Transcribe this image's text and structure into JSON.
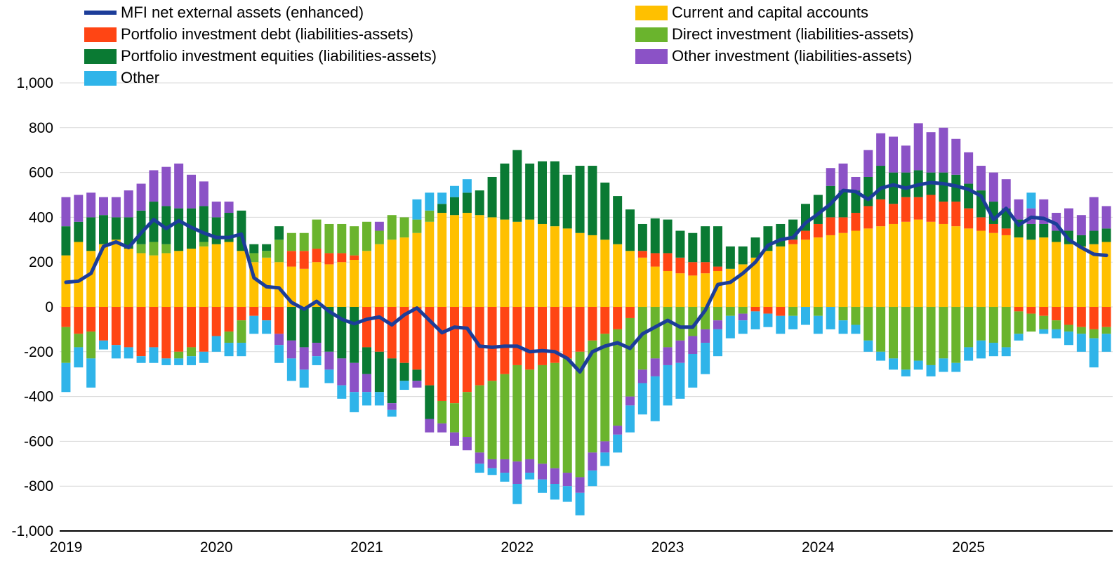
{
  "chart_data": {
    "type": "bar",
    "subtype": "stacked-bar-with-line-overlay",
    "x_unit": "month",
    "x_start": "2019-01",
    "x_end": "2025-12",
    "n_months": 84,
    "x_year_labels": [
      "2019",
      "2020",
      "2021",
      "2022",
      "2023",
      "2024",
      "2025"
    ],
    "ylim": [
      -1000,
      1000
    ],
    "y_tick_values": [
      1000,
      800,
      600,
      400,
      200,
      0,
      -200,
      -400,
      -600,
      -800,
      -1000
    ],
    "y_tick_labels": [
      "1,000",
      "800",
      "600",
      "400",
      "200",
      "0",
      "-200",
      "-400",
      "-600",
      "-800",
      "-1,000"
    ],
    "grid": true,
    "gridline_color": "#d9d9d9",
    "axis_color": "#000000",
    "legend_position": "top",
    "series": [
      {
        "name": "Current and capital accounts",
        "color": "#FFC000",
        "values": [
          230,
          290,
          250,
          280,
          300,
          260,
          240,
          230,
          240,
          250,
          260,
          270,
          280,
          290,
          250,
          200,
          220,
          200,
          180,
          170,
          200,
          190,
          200,
          210,
          250,
          280,
          300,
          310,
          330,
          380,
          420,
          410,
          420,
          410,
          400,
          390,
          380,
          390,
          370,
          360,
          350,
          330,
          320,
          300,
          280,
          250,
          220,
          180,
          160,
          150,
          140,
          150,
          160,
          170,
          190,
          220,
          250,
          270,
          280,
          300,
          310,
          320,
          330,
          340,
          350,
          360,
          370,
          380,
          390,
          380,
          370,
          360,
          350,
          340,
          330,
          320,
          310,
          300,
          310,
          290,
          280,
          270,
          280,
          290
        ]
      },
      {
        "name": "Portfolio investment debt (liabilities-assets)",
        "color": "#FF4514",
        "values": [
          -90,
          -120,
          -110,
          -150,
          -170,
          -180,
          -220,
          -180,
          -230,
          -200,
          -180,
          -200,
          -130,
          -110,
          -60,
          -40,
          -60,
          -120,
          70,
          80,
          60,
          50,
          40,
          20,
          -180,
          -200,
          -230,
          -250,
          -280,
          -350,
          -420,
          -430,
          -380,
          -350,
          -330,
          -300,
          -260,
          -280,
          -260,
          -250,
          -230,
          -200,
          -150,
          -120,
          -100,
          -50,
          30,
          60,
          80,
          70,
          60,
          50,
          20,
          0,
          0,
          -20,
          -30,
          -40,
          20,
          40,
          60,
          80,
          70,
          80,
          100,
          120,
          90,
          110,
          100,
          120,
          100,
          110,
          90,
          60,
          40,
          30,
          -20,
          -30,
          -40,
          -60,
          -80,
          -90,
          -100,
          -90
        ]
      },
      {
        "name": "Direct investment (liabilities-assets)",
        "color": "#6AB42D",
        "values": [
          -160,
          -60,
          -120,
          0,
          0,
          0,
          40,
          60,
          40,
          -30,
          -40,
          20,
          0,
          -50,
          -100,
          40,
          30,
          100,
          80,
          80,
          130,
          130,
          130,
          130,
          130,
          60,
          110,
          90,
          60,
          50,
          -100,
          -130,
          -200,
          -300,
          -350,
          -380,
          -430,
          -400,
          -440,
          -470,
          -510,
          -560,
          -500,
          -480,
          -430,
          -350,
          -280,
          -230,
          -180,
          -150,
          -130,
          -100,
          -60,
          -40,
          -30,
          0,
          0,
          0,
          -40,
          0,
          -40,
          0,
          -60,
          -80,
          -150,
          -200,
          -230,
          -280,
          -240,
          -260,
          -230,
          -250,
          -180,
          -150,
          -160,
          -180,
          -100,
          -80,
          -60,
          -40,
          -30,
          -30,
          -40,
          -30
        ]
      },
      {
        "name": "Portfolio investment equities (liabilities-assets)",
        "color": "#0A7A33",
        "values": [
          130,
          90,
          150,
          130,
          100,
          140,
          150,
          180,
          170,
          190,
          180,
          160,
          120,
          130,
          180,
          40,
          30,
          60,
          -150,
          -180,
          -160,
          -200,
          -230,
          -250,
          -120,
          -180,
          -200,
          -80,
          -50,
          -150,
          40,
          80,
          90,
          110,
          180,
          250,
          320,
          250,
          280,
          290,
          240,
          300,
          310,
          255,
          215,
          185,
          120,
          155,
          150,
          120,
          130,
          160,
          180,
          100,
          80,
          90,
          110,
          100,
          90,
          120,
          130,
          140,
          120,
          100,
          130,
          150,
          140,
          110,
          120,
          100,
          130,
          120,
          110,
          120,
          100,
          90,
          80,
          70,
          60,
          50,
          60,
          50,
          60,
          60
        ]
      },
      {
        "name": "Other investment (liabilities-assets)",
        "color": "#8B52C6",
        "values": [
          130,
          120,
          110,
          80,
          90,
          120,
          120,
          140,
          175,
          200,
          150,
          110,
          70,
          50,
          0,
          0,
          0,
          -50,
          -80,
          -100,
          -60,
          -80,
          -120,
          -130,
          -80,
          40,
          -30,
          0,
          -30,
          -60,
          -40,
          -60,
          -60,
          -50,
          -40,
          -60,
          -100,
          -60,
          -70,
          -70,
          -60,
          -70,
          -80,
          -50,
          -40,
          -40,
          -60,
          -80,
          -80,
          -100,
          -80,
          -60,
          -40,
          0,
          -30,
          0,
          0,
          0,
          0,
          0,
          0,
          80,
          120,
          60,
          120,
          145,
          160,
          120,
          210,
          180,
          200,
          160,
          140,
          110,
          130,
          130,
          90,
          70,
          110,
          80,
          100,
          90,
          150,
          100
        ]
      },
      {
        "name": "Other",
        "color": "#2FB4E9",
        "values": [
          -130,
          -90,
          -130,
          -40,
          -60,
          -50,
          -30,
          -70,
          -30,
          -30,
          -40,
          -50,
          -70,
          -60,
          -60,
          -80,
          -60,
          -80,
          -100,
          -80,
          -40,
          -60,
          -60,
          -90,
          -60,
          -60,
          -30,
          -40,
          90,
          80,
          50,
          50,
          60,
          -40,
          -30,
          -40,
          -90,
          -30,
          -60,
          -70,
          -70,
          -100,
          -70,
          -60,
          -80,
          -120,
          -140,
          -200,
          -180,
          -160,
          -150,
          -140,
          -120,
          -100,
          -60,
          -80,
          -60,
          -80,
          -60,
          -80,
          -80,
          -100,
          -60,
          -40,
          -50,
          -40,
          -50,
          -30,
          -40,
          -50,
          -60,
          -40,
          -60,
          -80,
          -60,
          -40,
          -30,
          70,
          -20,
          -40,
          -60,
          -80,
          -130,
          -80
        ]
      }
    ],
    "line": {
      "name": "MFI net external assets (enhanced)",
      "color": "#1C3D99",
      "values": [
        110,
        115,
        150,
        270,
        290,
        265,
        330,
        390,
        350,
        385,
        355,
        330,
        310,
        310,
        325,
        130,
        90,
        85,
        20,
        -10,
        25,
        -20,
        -55,
        -75,
        -55,
        -45,
        -80,
        -35,
        -5,
        -60,
        -115,
        -90,
        -95,
        -175,
        -180,
        -175,
        -175,
        -200,
        -195,
        -200,
        -230,
        -290,
        -200,
        -175,
        -160,
        -185,
        -120,
        -90,
        -60,
        -90,
        -90,
        -15,
        100,
        110,
        150,
        200,
        275,
        300,
        310,
        375,
        415,
        460,
        520,
        515,
        480,
        530,
        545,
        530,
        545,
        555,
        550,
        540,
        525,
        495,
        390,
        440,
        365,
        400,
        395,
        370,
        300,
        265,
        235,
        230
      ]
    }
  }
}
